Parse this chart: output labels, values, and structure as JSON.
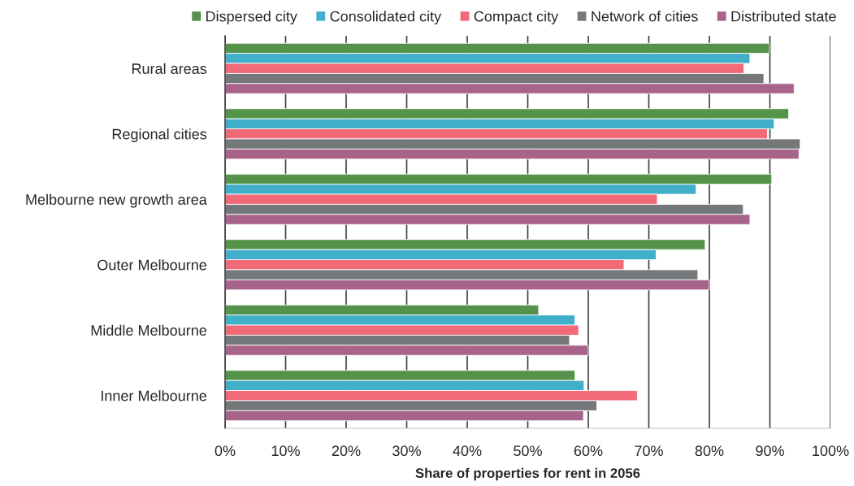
{
  "chart_data": {
    "type": "bar",
    "orientation": "horizontal",
    "xlabel": "Share of properties for rent in 2056",
    "categories": [
      "Rural areas",
      "Regional cities",
      "Melbourne new growth area",
      "Outer Melbourne",
      "Middle Melbourne",
      "Inner Melbourne"
    ],
    "series": [
      {
        "name": "Dispersed city",
        "color": "#55934a",
        "values": [
          89.9,
          93.1,
          90.3,
          79.3,
          51.8,
          57.8
        ]
      },
      {
        "name": "Consolidated city",
        "color": "#41afc9",
        "values": [
          86.7,
          90.7,
          77.8,
          71.2,
          57.8,
          59.3
        ]
      },
      {
        "name": "Compact city",
        "color": "#f06a77",
        "values": [
          85.7,
          89.6,
          71.4,
          65.9,
          58.4,
          68.1
        ]
      },
      {
        "name": "Network of cities",
        "color": "#75787b",
        "values": [
          89.0,
          95.0,
          85.6,
          78.1,
          56.9,
          61.4
        ]
      },
      {
        "name": "Distributed state",
        "color": "#a76389",
        "values": [
          94.0,
          94.8,
          86.7,
          80.0,
          60.0,
          59.2
        ]
      }
    ],
    "xlim": [
      0,
      100
    ],
    "xticks": [
      {
        "value": 0,
        "label": "0%"
      },
      {
        "value": 10,
        "label": "10%"
      },
      {
        "value": 20,
        "label": "20%"
      },
      {
        "value": 30,
        "label": "30%"
      },
      {
        "value": 40,
        "label": "40%"
      },
      {
        "value": 50,
        "label": "50%"
      },
      {
        "value": 60,
        "label": "60%"
      },
      {
        "value": 70,
        "label": "70%"
      },
      {
        "value": 80,
        "label": "80%"
      },
      {
        "value": 90,
        "label": "90%"
      },
      {
        "value": 100,
        "label": "100%"
      }
    ],
    "grid": "x",
    "legend": "top"
  }
}
